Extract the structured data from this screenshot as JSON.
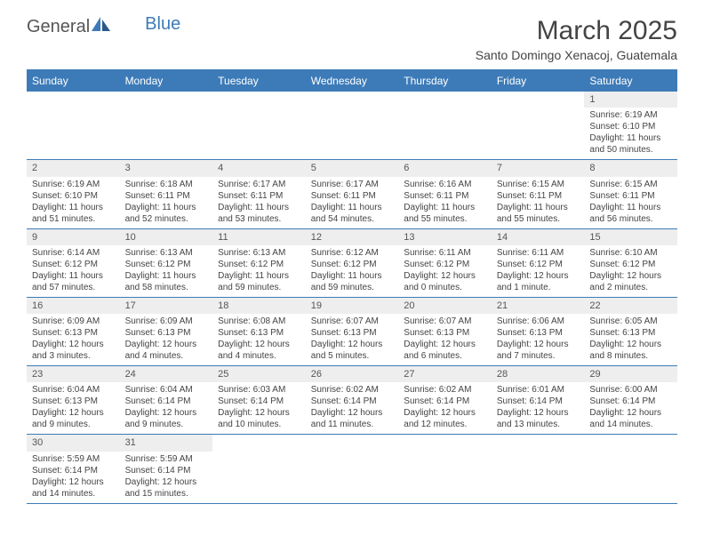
{
  "logo": {
    "general": "General",
    "blue": "Blue"
  },
  "title": "March 2025",
  "location": "Santo Domingo Xenacoj, Guatemala",
  "colors": {
    "header_bar": "#3d7bb8",
    "day_number_bg": "#eeeeee",
    "text": "#444444",
    "background": "#ffffff"
  },
  "weekdays": [
    "Sunday",
    "Monday",
    "Tuesday",
    "Wednesday",
    "Thursday",
    "Friday",
    "Saturday"
  ],
  "weeks": [
    [
      null,
      null,
      null,
      null,
      null,
      null,
      {
        "n": "1",
        "sr": "Sunrise: 6:19 AM",
        "ss": "Sunset: 6:10 PM",
        "dl": "Daylight: 11 hours and 50 minutes."
      }
    ],
    [
      {
        "n": "2",
        "sr": "Sunrise: 6:19 AM",
        "ss": "Sunset: 6:10 PM",
        "dl": "Daylight: 11 hours and 51 minutes."
      },
      {
        "n": "3",
        "sr": "Sunrise: 6:18 AM",
        "ss": "Sunset: 6:11 PM",
        "dl": "Daylight: 11 hours and 52 minutes."
      },
      {
        "n": "4",
        "sr": "Sunrise: 6:17 AM",
        "ss": "Sunset: 6:11 PM",
        "dl": "Daylight: 11 hours and 53 minutes."
      },
      {
        "n": "5",
        "sr": "Sunrise: 6:17 AM",
        "ss": "Sunset: 6:11 PM",
        "dl": "Daylight: 11 hours and 54 minutes."
      },
      {
        "n": "6",
        "sr": "Sunrise: 6:16 AM",
        "ss": "Sunset: 6:11 PM",
        "dl": "Daylight: 11 hours and 55 minutes."
      },
      {
        "n": "7",
        "sr": "Sunrise: 6:15 AM",
        "ss": "Sunset: 6:11 PM",
        "dl": "Daylight: 11 hours and 55 minutes."
      },
      {
        "n": "8",
        "sr": "Sunrise: 6:15 AM",
        "ss": "Sunset: 6:11 PM",
        "dl": "Daylight: 11 hours and 56 minutes."
      }
    ],
    [
      {
        "n": "9",
        "sr": "Sunrise: 6:14 AM",
        "ss": "Sunset: 6:12 PM",
        "dl": "Daylight: 11 hours and 57 minutes."
      },
      {
        "n": "10",
        "sr": "Sunrise: 6:13 AM",
        "ss": "Sunset: 6:12 PM",
        "dl": "Daylight: 11 hours and 58 minutes."
      },
      {
        "n": "11",
        "sr": "Sunrise: 6:13 AM",
        "ss": "Sunset: 6:12 PM",
        "dl": "Daylight: 11 hours and 59 minutes."
      },
      {
        "n": "12",
        "sr": "Sunrise: 6:12 AM",
        "ss": "Sunset: 6:12 PM",
        "dl": "Daylight: 11 hours and 59 minutes."
      },
      {
        "n": "13",
        "sr": "Sunrise: 6:11 AM",
        "ss": "Sunset: 6:12 PM",
        "dl": "Daylight: 12 hours and 0 minutes."
      },
      {
        "n": "14",
        "sr": "Sunrise: 6:11 AM",
        "ss": "Sunset: 6:12 PM",
        "dl": "Daylight: 12 hours and 1 minute."
      },
      {
        "n": "15",
        "sr": "Sunrise: 6:10 AM",
        "ss": "Sunset: 6:12 PM",
        "dl": "Daylight: 12 hours and 2 minutes."
      }
    ],
    [
      {
        "n": "16",
        "sr": "Sunrise: 6:09 AM",
        "ss": "Sunset: 6:13 PM",
        "dl": "Daylight: 12 hours and 3 minutes."
      },
      {
        "n": "17",
        "sr": "Sunrise: 6:09 AM",
        "ss": "Sunset: 6:13 PM",
        "dl": "Daylight: 12 hours and 4 minutes."
      },
      {
        "n": "18",
        "sr": "Sunrise: 6:08 AM",
        "ss": "Sunset: 6:13 PM",
        "dl": "Daylight: 12 hours and 4 minutes."
      },
      {
        "n": "19",
        "sr": "Sunrise: 6:07 AM",
        "ss": "Sunset: 6:13 PM",
        "dl": "Daylight: 12 hours and 5 minutes."
      },
      {
        "n": "20",
        "sr": "Sunrise: 6:07 AM",
        "ss": "Sunset: 6:13 PM",
        "dl": "Daylight: 12 hours and 6 minutes."
      },
      {
        "n": "21",
        "sr": "Sunrise: 6:06 AM",
        "ss": "Sunset: 6:13 PM",
        "dl": "Daylight: 12 hours and 7 minutes."
      },
      {
        "n": "22",
        "sr": "Sunrise: 6:05 AM",
        "ss": "Sunset: 6:13 PM",
        "dl": "Daylight: 12 hours and 8 minutes."
      }
    ],
    [
      {
        "n": "23",
        "sr": "Sunrise: 6:04 AM",
        "ss": "Sunset: 6:13 PM",
        "dl": "Daylight: 12 hours and 9 minutes."
      },
      {
        "n": "24",
        "sr": "Sunrise: 6:04 AM",
        "ss": "Sunset: 6:14 PM",
        "dl": "Daylight: 12 hours and 9 minutes."
      },
      {
        "n": "25",
        "sr": "Sunrise: 6:03 AM",
        "ss": "Sunset: 6:14 PM",
        "dl": "Daylight: 12 hours and 10 minutes."
      },
      {
        "n": "26",
        "sr": "Sunrise: 6:02 AM",
        "ss": "Sunset: 6:14 PM",
        "dl": "Daylight: 12 hours and 11 minutes."
      },
      {
        "n": "27",
        "sr": "Sunrise: 6:02 AM",
        "ss": "Sunset: 6:14 PM",
        "dl": "Daylight: 12 hours and 12 minutes."
      },
      {
        "n": "28",
        "sr": "Sunrise: 6:01 AM",
        "ss": "Sunset: 6:14 PM",
        "dl": "Daylight: 12 hours and 13 minutes."
      },
      {
        "n": "29",
        "sr": "Sunrise: 6:00 AM",
        "ss": "Sunset: 6:14 PM",
        "dl": "Daylight: 12 hours and 14 minutes."
      }
    ],
    [
      {
        "n": "30",
        "sr": "Sunrise: 5:59 AM",
        "ss": "Sunset: 6:14 PM",
        "dl": "Daylight: 12 hours and 14 minutes."
      },
      {
        "n": "31",
        "sr": "Sunrise: 5:59 AM",
        "ss": "Sunset: 6:14 PM",
        "dl": "Daylight: 12 hours and 15 minutes."
      },
      null,
      null,
      null,
      null,
      null
    ]
  ]
}
